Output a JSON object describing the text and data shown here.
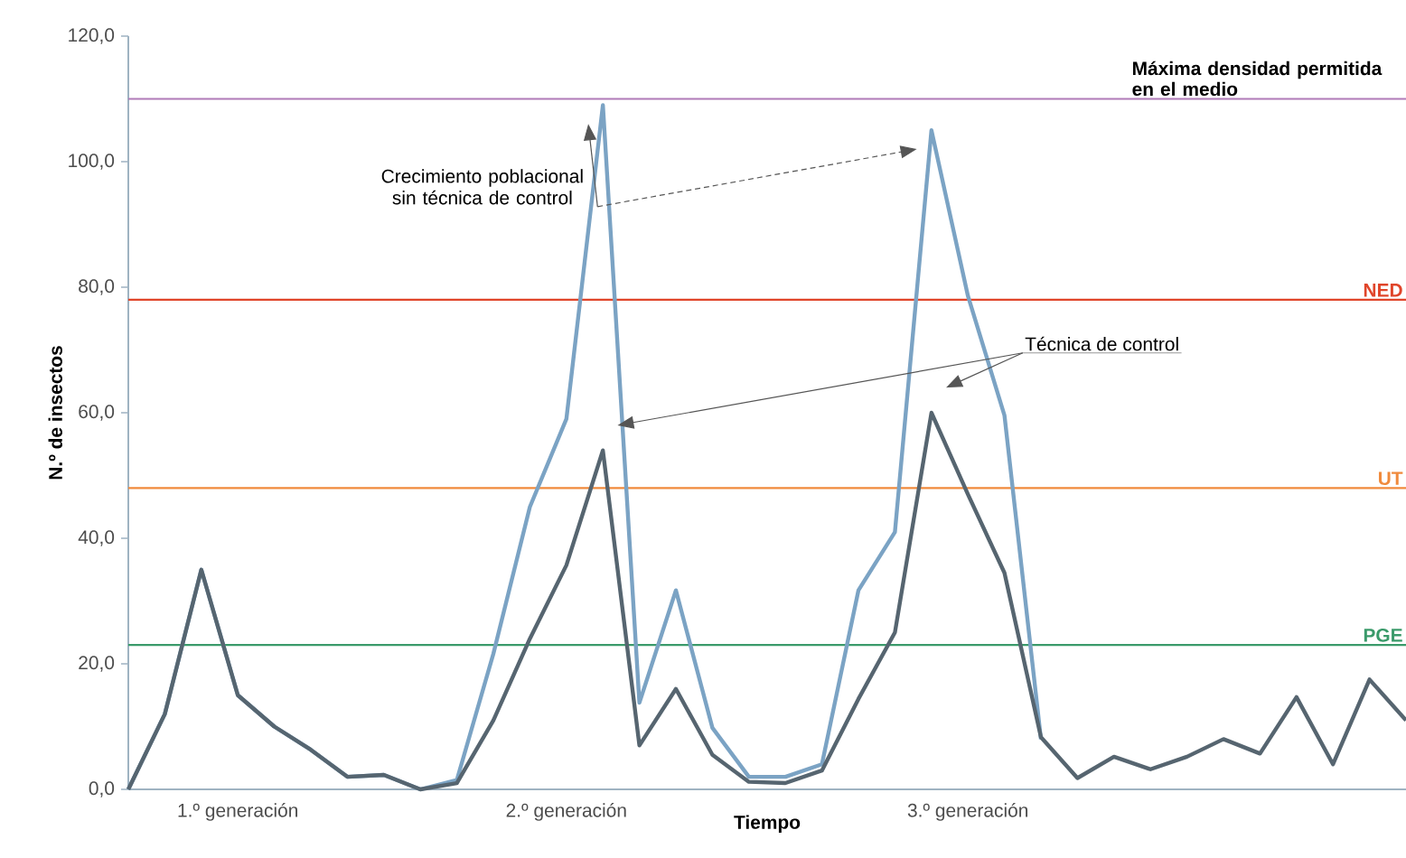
{
  "chart_data": {
    "type": "line",
    "xlabel": "Tiempo",
    "ylabel": "N.º de insectos",
    "ylim": [
      0,
      120
    ],
    "categories": [
      null,
      null,
      null,
      "1.º generación",
      null,
      null,
      null,
      null,
      null,
      null,
      null,
      null,
      "2.º generación",
      null,
      null,
      null,
      null,
      null,
      null,
      null,
      null,
      null,
      null,
      "3.º generación",
      null,
      null,
      null,
      null,
      null,
      null,
      null,
      null,
      null,
      null,
      null,
      null
    ],
    "yticks": [
      {
        "value": 0,
        "label": "0,0"
      },
      {
        "value": 20,
        "label": "20,0"
      },
      {
        "value": 40,
        "label": "40,0"
      },
      {
        "value": 60,
        "label": "60,0"
      },
      {
        "value": 80,
        "label": "80,0"
      },
      {
        "value": 100,
        "label": "100,0"
      },
      {
        "value": 120,
        "label": "120,0"
      }
    ],
    "grid": false,
    "marker": "none",
    "line_style": "solid",
    "series": [
      {
        "name": "Crecimiento poblacional sin técnica de control",
        "color": "#7ba3c4",
        "values": [
          0,
          12,
          35,
          15,
          10,
          6.3,
          2,
          2.3,
          0,
          1.5,
          21.6,
          45,
          59,
          109,
          13.8,
          31.7,
          9.8,
          2,
          2,
          4,
          31.7,
          41,
          105,
          78.6,
          59.6,
          8,
          null,
          null,
          null,
          null,
          null,
          null,
          null,
          null,
          null,
          null
        ]
      },
      {
        "name": "Técnica de control",
        "color": "#566570",
        "values": [
          0,
          12,
          35,
          15,
          10,
          6.3,
          2,
          2.3,
          0,
          1,
          11,
          24,
          35.7,
          54,
          7,
          16,
          5.5,
          1.2,
          1,
          3,
          14.4,
          25,
          60,
          47,
          34.5,
          8.3,
          1.8,
          5.2,
          3.2,
          5.2,
          8,
          5.7,
          14.7,
          4,
          17.5,
          11
        ]
      }
    ],
    "ref_lines": [
      {
        "axis": "y",
        "value": 110,
        "label": "Máxima densidad permitida en el medio",
        "color": "#b07ab8"
      },
      {
        "axis": "y",
        "value": 78,
        "label": "NED",
        "color": "#e0452a"
      },
      {
        "axis": "y",
        "value": 48,
        "label": "UT",
        "color": "#f08a3c"
      },
      {
        "axis": "y",
        "value": 23,
        "label": "PGE",
        "color": "#3a9a6a"
      }
    ]
  }
}
